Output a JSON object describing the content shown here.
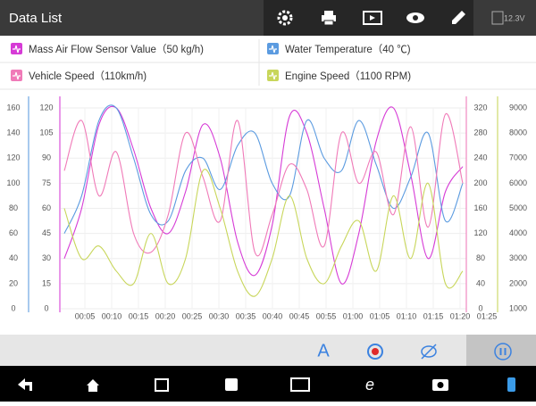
{
  "header": {
    "title": "Data List",
    "battery": "12.3V"
  },
  "chart_data": {
    "type": "line",
    "grid": true,
    "x_labels": [
      "00:05",
      "00:10",
      "00:15",
      "00:20",
      "00:25",
      "00:30",
      "00:35",
      "00:40",
      "00:45",
      "00:55",
      "01:00",
      "01:05",
      "01:10",
      "01:15",
      "01:20",
      "01:25"
    ],
    "series": [
      {
        "name": "Mass Air Flow Sensor Value（50 kg/h)",
        "color": "#d63bd6",
        "ylim": [
          0,
          120
        ],
        "yticks": [
          0,
          15,
          30,
          45,
          60,
          75,
          90,
          105,
          120
        ],
        "values": [
          30,
          60,
          110,
          120,
          95,
          60,
          45,
          70,
          110,
          90,
          40,
          20,
          50,
          115,
          105,
          60,
          15,
          45,
          100,
          120,
          80,
          30,
          70,
          85
        ]
      },
      {
        "name": "Water Temperature（40 ℃)",
        "color": "#5b9be0",
        "ylim": [
          0,
          160
        ],
        "yticks": [
          0,
          20,
          40,
          60,
          80,
          100,
          120,
          140,
          160
        ],
        "values": [
          60,
          90,
          150,
          160,
          120,
          75,
          70,
          110,
          120,
          95,
          130,
          140,
          100,
          90,
          150,
          120,
          110,
          150,
          115,
          80,
          105,
          140,
          70,
          100
        ]
      },
      {
        "name": "Vehicle Speed（110km/h)",
        "color": "#f07ab8",
        "ylim": [
          0,
          320
        ],
        "yticks": [
          0,
          40,
          80,
          120,
          160,
          200,
          240,
          280,
          320
        ],
        "values": [
          220,
          300,
          180,
          250,
          120,
          90,
          150,
          280,
          210,
          140,
          300,
          90,
          150,
          230,
          190,
          100,
          280,
          200,
          250,
          150,
          290,
          130,
          310,
          200
        ]
      },
      {
        "name": "Engine Speed（1100 RPM)",
        "color": "#c8d65a",
        "ylim": [
          1000,
          9000
        ],
        "yticks": [
          1000,
          2000,
          3000,
          4000,
          5000,
          6000,
          7000,
          8000,
          9000
        ],
        "values": [
          5000,
          3000,
          3500,
          2500,
          2000,
          4000,
          2000,
          3000,
          6500,
          5000,
          2500,
          1500,
          3000,
          5500,
          3000,
          2000,
          3500,
          4500,
          2500,
          5500,
          3000,
          6000,
          2000,
          2500
        ]
      }
    ]
  },
  "toolbar": {
    "text_button": "A"
  }
}
